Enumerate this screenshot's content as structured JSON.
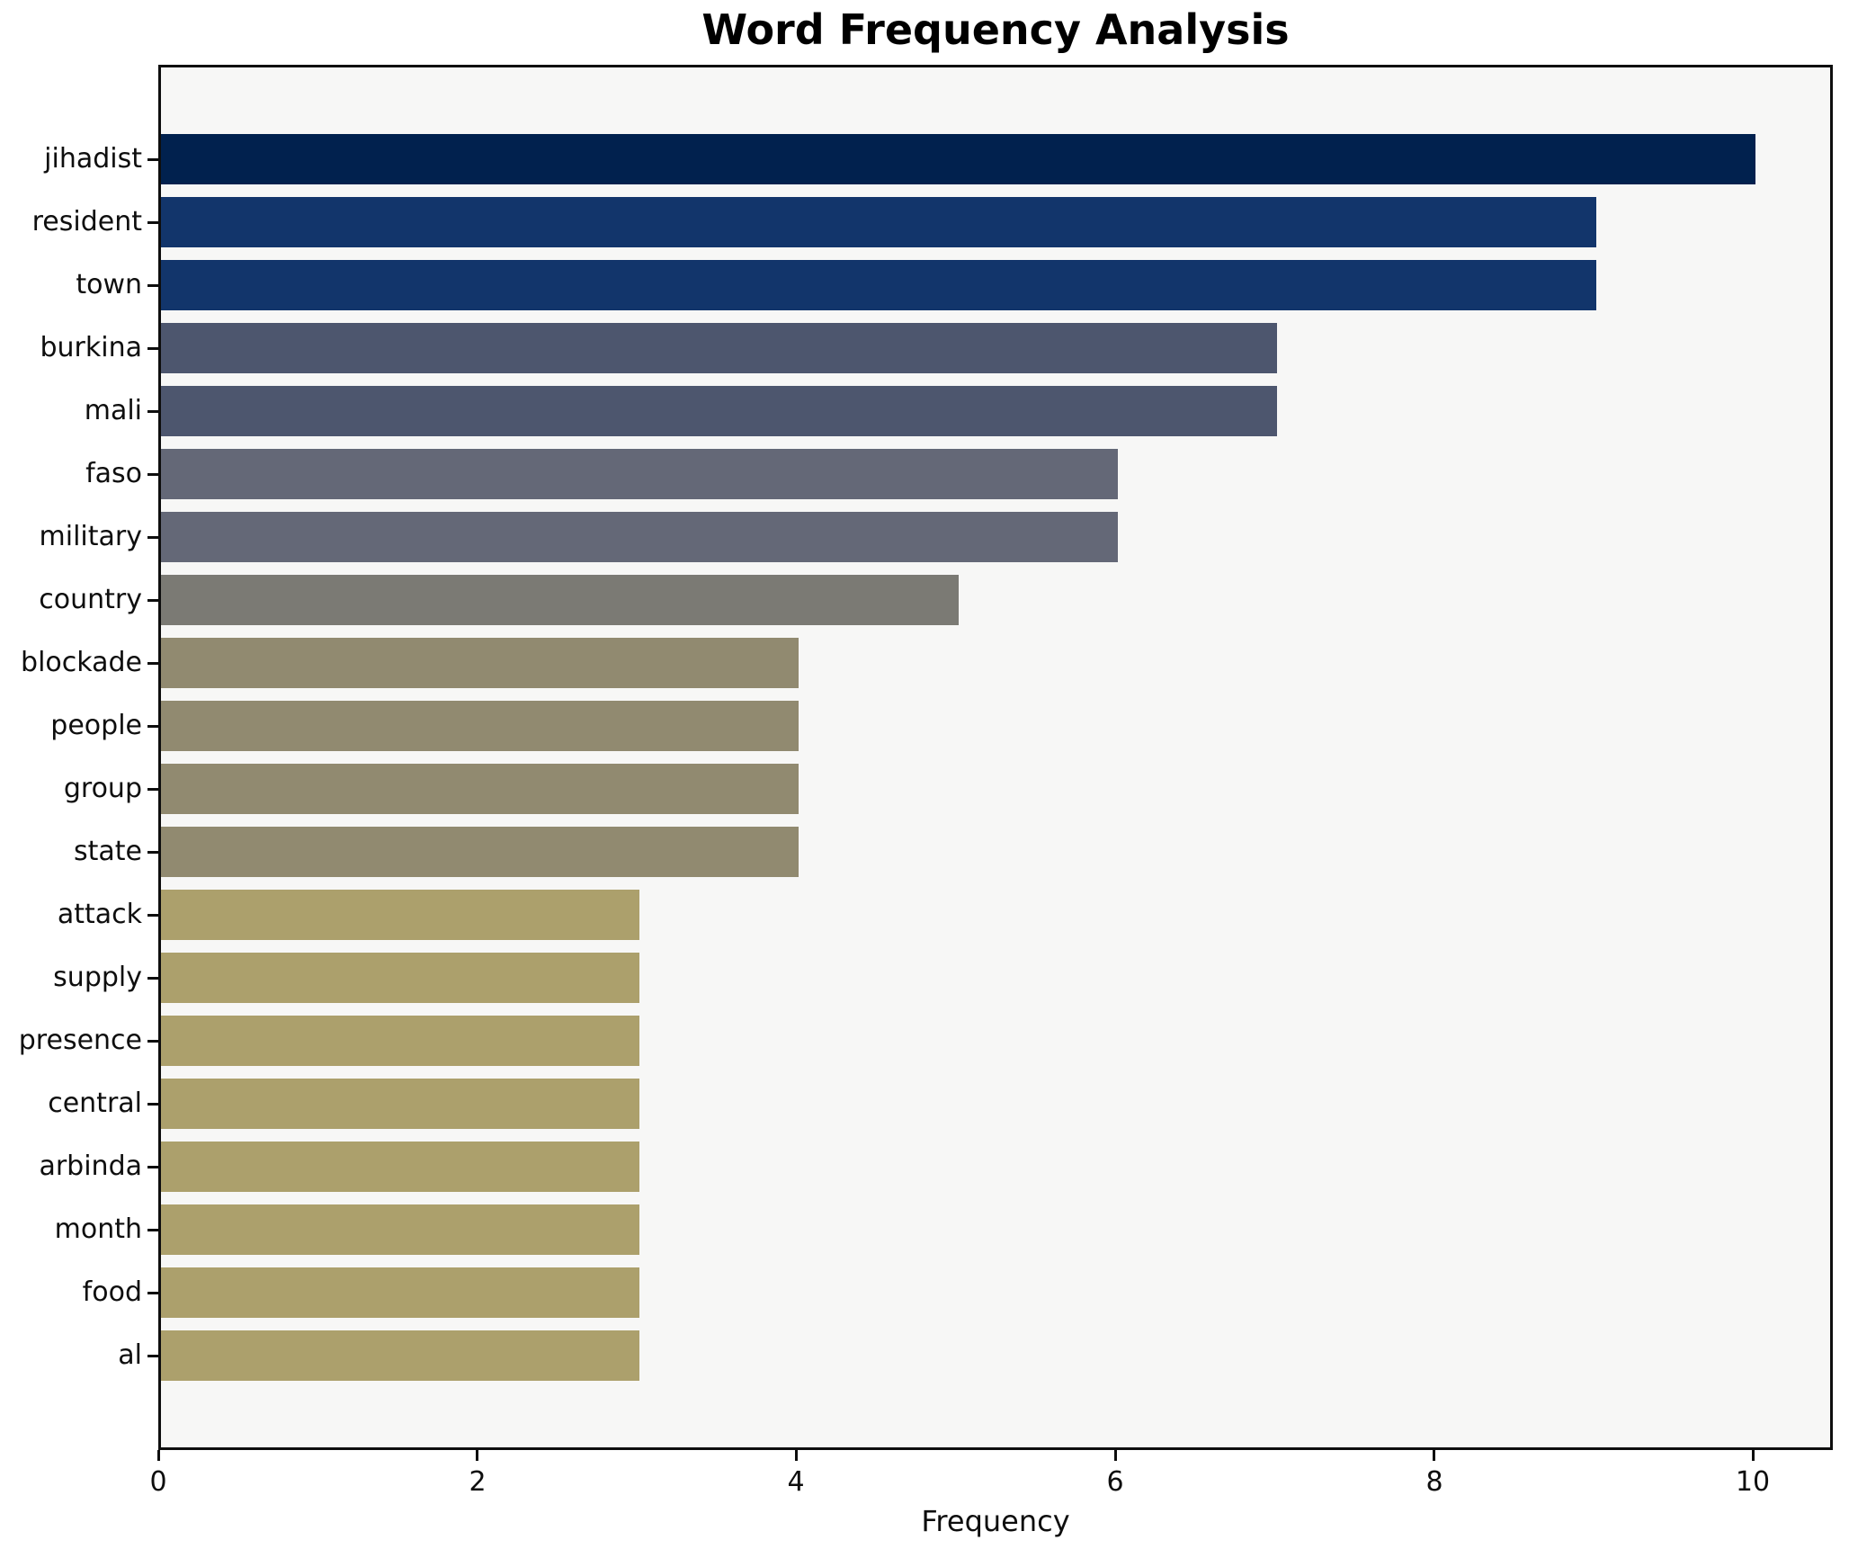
{
  "chart_data": {
    "type": "bar",
    "orientation": "horizontal",
    "title": "Word Frequency Analysis",
    "xlabel": "Frequency",
    "ylabel": "",
    "xlim": [
      0,
      10.5
    ],
    "x_ticks": [
      0,
      2,
      4,
      6,
      8,
      10
    ],
    "grid": false,
    "legend": "none",
    "plot_background": "#f7f7f6",
    "spine_color": "#0e0e0e",
    "categories": [
      "jihadist",
      "resident",
      "town",
      "burkina",
      "mali",
      "faso",
      "military",
      "country",
      "blockade",
      "people",
      "group",
      "state",
      "attack",
      "supply",
      "presence",
      "central",
      "arbinda",
      "month",
      "food",
      "al"
    ],
    "values": [
      10,
      9,
      9,
      7,
      7,
      6,
      6,
      5,
      4,
      4,
      4,
      4,
      3,
      3,
      3,
      3,
      3,
      3,
      3,
      3
    ],
    "bar_colors": [
      "#01214e",
      "#12356b",
      "#12356b",
      "#4d566e",
      "#4d566e",
      "#646877",
      "#646877",
      "#7b7a74",
      "#918a70",
      "#918a70",
      "#918a70",
      "#918a70",
      "#aca06c",
      "#aca06c",
      "#aca06c",
      "#aca06c",
      "#aca06c",
      "#aca06c",
      "#aca06c",
      "#aca06c"
    ]
  }
}
